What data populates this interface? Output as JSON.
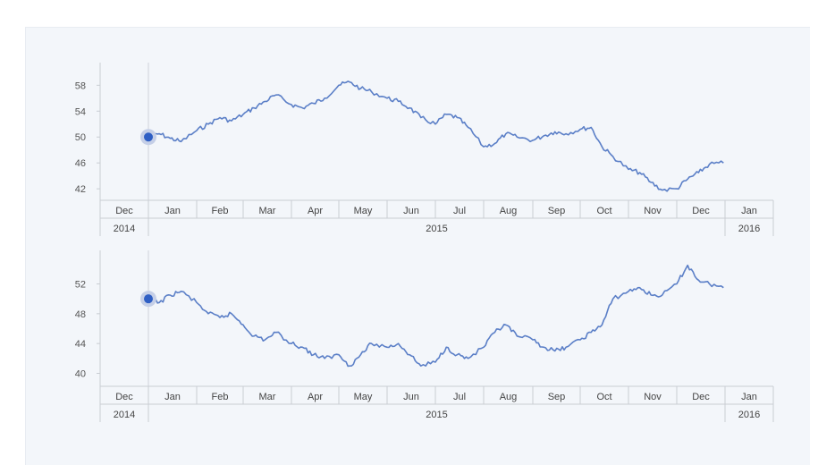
{
  "colors": {
    "line": "#5b7fc7",
    "marker": "#2f5fc4",
    "marker_halo": "#c5cfe7",
    "axis": "#c9cdd3",
    "panel_bg": "#f3f6fa"
  },
  "chart_data": [
    {
      "type": "line",
      "title": "",
      "xlabel": "",
      "ylabel": "",
      "x_range": [
        "2014-12-01",
        "2016-01-31"
      ],
      "ylim": [
        39,
        62
      ],
      "yticks": [
        42,
        46,
        50,
        54,
        58
      ],
      "month_labels": [
        "Dec",
        "Jan",
        "Feb",
        "Mar",
        "Apr",
        "May",
        "Jun",
        "Jul",
        "Aug",
        "Sep",
        "Oct",
        "Nov",
        "Dec",
        "Jan"
      ],
      "year_labels": [
        "2014",
        "2015",
        "2016"
      ],
      "grid": false,
      "marker": {
        "date": "2015-01-01",
        "value": 50
      },
      "series": [
        {
          "points": [
            [
              "2015-01-01",
              50.0
            ],
            [
              "2015-01-08",
              50.5
            ],
            [
              "2015-01-15",
              49.8
            ],
            [
              "2015-01-22",
              49.3
            ],
            [
              "2015-02-01",
              51.0
            ],
            [
              "2015-02-08",
              52.0
            ],
            [
              "2015-02-15",
              53.0
            ],
            [
              "2015-02-22",
              52.5
            ],
            [
              "2015-03-01",
              53.5
            ],
            [
              "2015-03-08",
              54.5
            ],
            [
              "2015-03-15",
              55.5
            ],
            [
              "2015-03-22",
              56.5
            ],
            [
              "2015-04-01",
              55.0
            ],
            [
              "2015-04-08",
              54.5
            ],
            [
              "2015-04-15",
              55.2
            ],
            [
              "2015-04-22",
              56.0
            ],
            [
              "2015-05-01",
              58.0
            ],
            [
              "2015-05-08",
              58.5
            ],
            [
              "2015-05-15",
              57.5
            ],
            [
              "2015-05-22",
              57.0
            ],
            [
              "2015-06-01",
              56.0
            ],
            [
              "2015-06-08",
              55.5
            ],
            [
              "2015-06-15",
              54.5
            ],
            [
              "2015-06-22",
              53.0
            ],
            [
              "2015-07-01",
              52.0
            ],
            [
              "2015-07-08",
              53.5
            ],
            [
              "2015-07-15",
              53.0
            ],
            [
              "2015-07-22",
              51.5
            ],
            [
              "2015-08-01",
              48.5
            ],
            [
              "2015-08-08",
              49.0
            ],
            [
              "2015-08-15",
              50.5
            ],
            [
              "2015-08-22",
              50.0
            ],
            [
              "2015-09-01",
              49.5
            ],
            [
              "2015-09-08",
              50.2
            ],
            [
              "2015-09-15",
              50.8
            ],
            [
              "2015-09-22",
              50.5
            ],
            [
              "2015-10-01",
              51.2
            ],
            [
              "2015-10-08",
              51.5
            ],
            [
              "2015-10-15",
              48.5
            ],
            [
              "2015-10-22",
              47.0
            ],
            [
              "2015-11-01",
              45.0
            ],
            [
              "2015-11-08",
              44.5
            ],
            [
              "2015-11-15",
              43.0
            ],
            [
              "2015-11-22",
              41.8
            ],
            [
              "2015-12-01",
              42.0
            ],
            [
              "2015-12-08",
              43.5
            ],
            [
              "2015-12-15",
              44.5
            ],
            [
              "2015-12-22",
              45.8
            ],
            [
              "2015-12-31",
              46.0
            ]
          ]
        }
      ]
    },
    {
      "type": "line",
      "title": "",
      "xlabel": "",
      "ylabel": "",
      "x_range": [
        "2014-12-01",
        "2016-01-31"
      ],
      "ylim": [
        38,
        56
      ],
      "yticks": [
        40,
        44,
        48,
        52
      ],
      "month_labels": [
        "Dec",
        "Jan",
        "Feb",
        "Mar",
        "Apr",
        "May",
        "Jun",
        "Jul",
        "Aug",
        "Sep",
        "Oct",
        "Nov",
        "Dec",
        "Jan"
      ],
      "year_labels": [
        "2014",
        "2015",
        "2016"
      ],
      "grid": false,
      "marker": {
        "date": "2015-01-01",
        "value": 50
      },
      "series": [
        {
          "points": [
            [
              "2015-01-01",
              50.0
            ],
            [
              "2015-01-08",
              49.5
            ],
            [
              "2015-01-15",
              50.5
            ],
            [
              "2015-01-22",
              51.0
            ],
            [
              "2015-02-01",
              49.5
            ],
            [
              "2015-02-08",
              48.0
            ],
            [
              "2015-02-15",
              47.5
            ],
            [
              "2015-02-22",
              48.0
            ],
            [
              "2015-03-01",
              46.5
            ],
            [
              "2015-03-08",
              45.0
            ],
            [
              "2015-03-15",
              44.5
            ],
            [
              "2015-03-22",
              45.5
            ],
            [
              "2015-04-01",
              44.0
            ],
            [
              "2015-04-08",
              43.5
            ],
            [
              "2015-04-15",
              42.5
            ],
            [
              "2015-04-22",
              42.0
            ],
            [
              "2015-05-01",
              42.5
            ],
            [
              "2015-05-08",
              41.0
            ],
            [
              "2015-05-15",
              42.5
            ],
            [
              "2015-05-22",
              44.0
            ],
            [
              "2015-06-01",
              43.5
            ],
            [
              "2015-06-08",
              44.0
            ],
            [
              "2015-06-15",
              42.5
            ],
            [
              "2015-06-22",
              41.0
            ],
            [
              "2015-07-01",
              41.5
            ],
            [
              "2015-07-08",
              43.5
            ],
            [
              "2015-07-15",
              42.5
            ],
            [
              "2015-07-22",
              42.0
            ],
            [
              "2015-08-01",
              43.5
            ],
            [
              "2015-08-08",
              45.5
            ],
            [
              "2015-08-15",
              46.5
            ],
            [
              "2015-08-22",
              45.0
            ],
            [
              "2015-09-01",
              44.5
            ],
            [
              "2015-09-08",
              43.5
            ],
            [
              "2015-09-15",
              43.0
            ],
            [
              "2015-09-22",
              43.5
            ],
            [
              "2015-10-01",
              44.5
            ],
            [
              "2015-10-08",
              45.5
            ],
            [
              "2015-10-15",
              46.5
            ],
            [
              "2015-10-22",
              50.0
            ],
            [
              "2015-11-01",
              51.0
            ],
            [
              "2015-11-08",
              51.5
            ],
            [
              "2015-11-15",
              50.5
            ],
            [
              "2015-11-22",
              50.5
            ],
            [
              "2015-12-01",
              52.0
            ],
            [
              "2015-12-08",
              54.5
            ],
            [
              "2015-12-15",
              52.5
            ],
            [
              "2015-12-22",
              52.0
            ],
            [
              "2015-12-31",
              51.5
            ]
          ]
        }
      ]
    }
  ]
}
